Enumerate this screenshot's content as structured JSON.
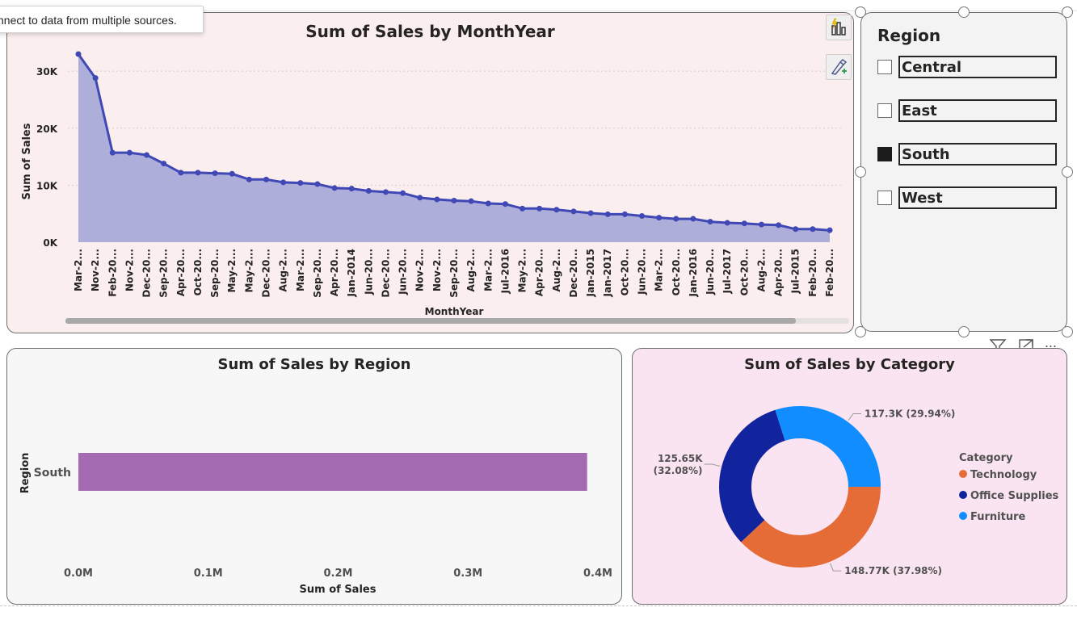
{
  "tooltip": {
    "text": "nnect to data from multiple sources."
  },
  "icons": {
    "quick_insights": "lightning-chart-icon",
    "format_visual": "paintbrush-icon",
    "filter": "filter-icon",
    "focus_mode": "focus-mode-icon",
    "more_options": "more-options-icon"
  },
  "more_options_label": "...",
  "slicer": {
    "title": "Region",
    "items": [
      {
        "label": "Central",
        "checked": false
      },
      {
        "label": "East",
        "checked": false
      },
      {
        "label": "South",
        "checked": true
      },
      {
        "label": "West",
        "checked": false
      }
    ]
  },
  "chart_data": [
    {
      "id": "sales-by-monthyear",
      "type": "area",
      "title": "Sum of Sales by MonthYear",
      "xlabel": "MonthYear",
      "ylabel": "Sum of Sales",
      "ylim": [
        0,
        33000
      ],
      "yticks": [
        "0K",
        "10K",
        "20K",
        "30K"
      ],
      "ytick_values": [
        0,
        10000,
        20000,
        30000
      ],
      "grid": true,
      "color": "#3f48b5",
      "fill": "#aeaedb",
      "categories": [
        "Mar-2...",
        "Nov-2...",
        "Feb-20...",
        "Nov-2...",
        "Dec-20...",
        "Sep-20...",
        "Apr-20...",
        "Oct-20...",
        "Sep-20...",
        "May-2...",
        "May-2...",
        "Dec-20...",
        "Aug-2...",
        "Mar-2...",
        "Sep-20...",
        "Apr-20...",
        "Jan-2014",
        "Jun-20...",
        "Dec-20...",
        "Jun-20...",
        "Nov-2...",
        "Nov-2...",
        "Sep-20...",
        "Aug-2...",
        "Mar-2...",
        "Jul-2016",
        "May-2...",
        "Apr-20...",
        "Aug-2...",
        "Dec-20...",
        "Jan-2015",
        "Jan-2017",
        "Oct-20...",
        "Jun-20...",
        "Mar-2...",
        "Oct-20...",
        "Jan-2016",
        "Jun-20...",
        "Jul-2017",
        "Oct-20...",
        "Aug-2...",
        "Apr-20...",
        "Jul-2015",
        "Feb-20...",
        "Feb-20..."
      ],
      "values": [
        33000,
        28800,
        15700,
        15700,
        15300,
        13800,
        12200,
        12200,
        12100,
        12000,
        11000,
        11000,
        10500,
        10400,
        10200,
        9500,
        9400,
        9000,
        8800,
        8600,
        7800,
        7500,
        7300,
        7200,
        6800,
        6700,
        5900,
        5900,
        5700,
        5400,
        5100,
        4900,
        4900,
        4600,
        4300,
        4100,
        4100,
        3600,
        3400,
        3300,
        3100,
        3000,
        2300,
        2300,
        2100
      ]
    },
    {
      "id": "sales-by-region",
      "type": "bar",
      "orientation": "horizontal",
      "title": "Sum of Sales by Region",
      "xlabel": "Sum of Sales",
      "ylabel": "Region",
      "xlim": [
        0,
        400000
      ],
      "xticks": [
        "0.0M",
        "0.1M",
        "0.2M",
        "0.3M",
        "0.4M"
      ],
      "xtick_values": [
        0,
        100000,
        200000,
        300000,
        400000
      ],
      "color": "#a66ab3",
      "categories": [
        "South"
      ],
      "values": [
        391720
      ]
    },
    {
      "id": "sales-by-category",
      "type": "pie",
      "donut": true,
      "title": "Sum of Sales by Category",
      "legend_title": "Category",
      "legend_position": "right",
      "categories": [
        "Technology",
        "Office Supplies",
        "Furniture"
      ],
      "values": [
        148770,
        125650,
        117300
      ],
      "labels": [
        "148.77K (37.98%)",
        "125.65K (32.08%)",
        "117.3K (29.94%)"
      ],
      "colors": [
        "#e66c37",
        "#12239e",
        "#118dff"
      ]
    }
  ]
}
